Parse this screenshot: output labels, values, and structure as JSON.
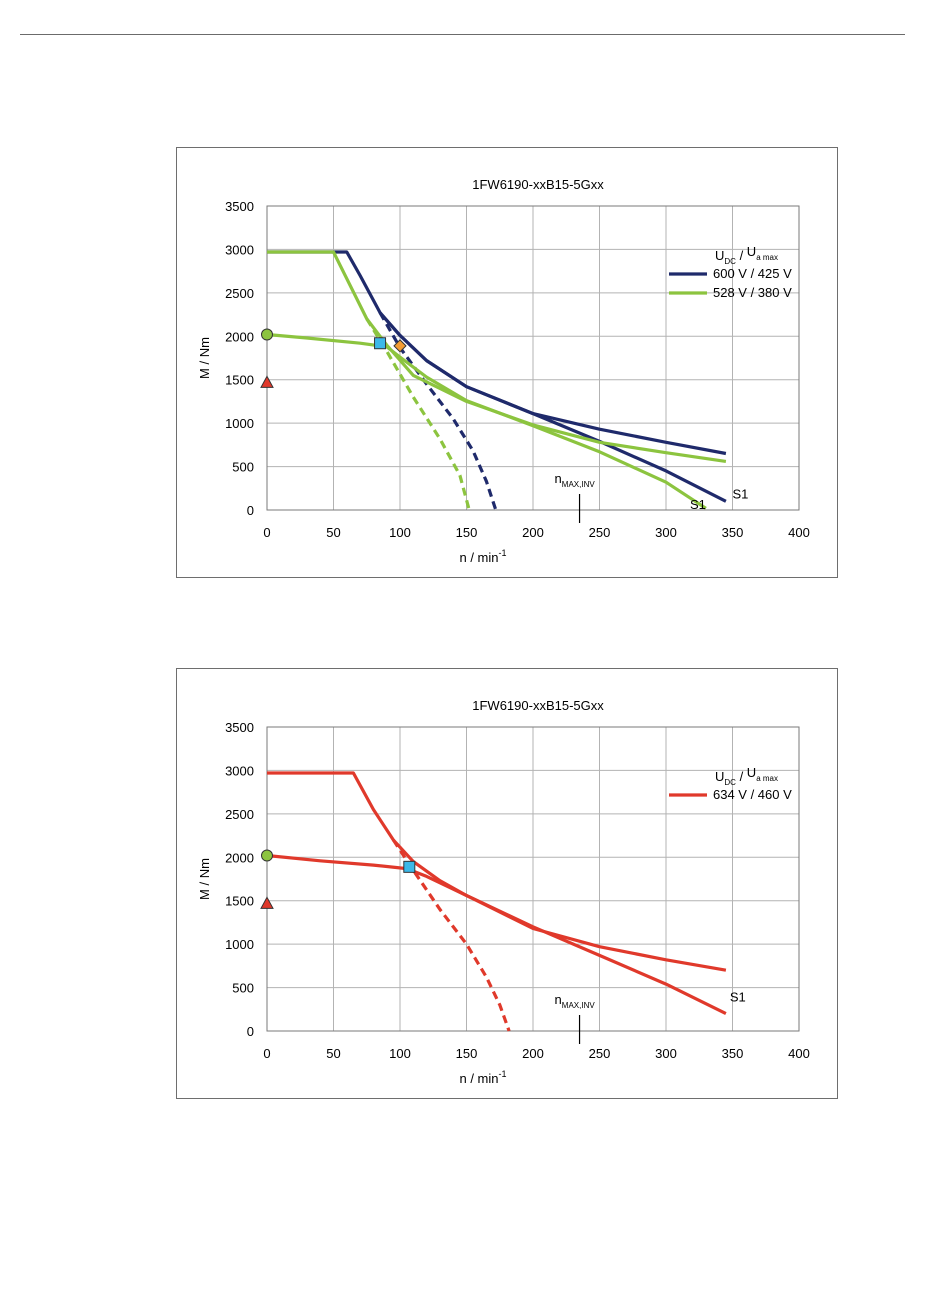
{
  "chart_data": [
    {
      "type": "line",
      "title": "1FW6190-xxB15-5Gxx",
      "xlabel_base": "n / min",
      "xlabel_sup": "-1",
      "ylabel": "M / Nm",
      "xlim": [
        0,
        400
      ],
      "ylim": [
        0,
        3500
      ],
      "xticks": [
        0,
        50,
        100,
        150,
        200,
        250,
        300,
        350,
        400
      ],
      "yticks": [
        0,
        500,
        1000,
        1500,
        2000,
        2500,
        3000,
        3500
      ],
      "grid": true,
      "legend_position": "top-right",
      "legend_header": {
        "u1": "U",
        "s1": "DC",
        "sep": "/",
        "u2": "U",
        "s2": "a max"
      },
      "nmax_label": {
        "base": "n",
        "sub": "MAX,INV",
        "x": 235
      },
      "annotations": [
        {
          "text": "S1",
          "x": 350,
          "y": 130
        },
        {
          "text": "S1",
          "x": 318,
          "y": 10
        }
      ],
      "series": [
        {
          "name": "600 V / 425 V",
          "color": "#1f2a6b",
          "lines": [
            {
              "style": "solid",
              "points": [
                [
                  0,
                  2970
                ],
                [
                  60,
                  2970
                ],
                [
                  70,
                  2700
                ],
                [
                  85,
                  2270
                ],
                [
                  100,
                  2010
                ],
                [
                  120,
                  1720
                ],
                [
                  150,
                  1420
                ],
                [
                  200,
                  1110
                ],
                [
                  250,
                  930
                ],
                [
                  300,
                  780
                ],
                [
                  345,
                  650
                ]
              ]
            },
            {
              "style": "solid",
              "points": [
                [
                  85,
                  2270
                ],
                [
                  100,
                  2010
                ],
                [
                  120,
                  1720
                ],
                [
                  150,
                  1420
                ],
                [
                  200,
                  1110
                ],
                [
                  250,
                  790
                ],
                [
                  300,
                  450
                ],
                [
                  345,
                  100
                ]
              ]
            },
            {
              "style": "dashed",
              "points": [
                [
                  85,
                  2270
                ],
                [
                  100,
                  1870
                ],
                [
                  120,
                  1450
                ],
                [
                  140,
                  1050
                ],
                [
                  155,
                  680
                ],
                [
                  165,
                  330
                ],
                [
                  172,
                  0
                ]
              ]
            }
          ]
        },
        {
          "name": "528 V / 380 V",
          "color": "#8cc43f",
          "lines": [
            {
              "style": "solid",
              "points": [
                [
                  0,
                  2970
                ],
                [
                  50,
                  2970
                ],
                [
                  75,
                  2200
                ],
                [
                  90,
                  1900
                ],
                [
                  110,
                  1550
                ],
                [
                  150,
                  1250
                ],
                [
                  200,
                  980
                ],
                [
                  250,
                  780
                ],
                [
                  300,
                  660
                ],
                [
                  345,
                  560
                ]
              ]
            },
            {
              "style": "solid",
              "points": [
                [
                  0,
                  2020
                ],
                [
                  30,
                  1980
                ],
                [
                  70,
                  1920
                ],
                [
                  90,
                  1880
                ],
                [
                  100,
                  1760
                ],
                [
                  120,
                  1530
                ],
                [
                  150,
                  1260
                ],
                [
                  200,
                  970
                ],
                [
                  250,
                  670
                ],
                [
                  300,
                  320
                ],
                [
                  330,
                  20
                ]
              ]
            },
            {
              "style": "dashed",
              "points": [
                [
                  75,
                  2200
                ],
                [
                  90,
                  1830
                ],
                [
                  110,
                  1300
                ],
                [
                  130,
                  820
                ],
                [
                  145,
                  400
                ],
                [
                  152,
                  0
                ]
              ]
            }
          ]
        }
      ],
      "markers": [
        {
          "shape": "circle",
          "color": "#8cc43f",
          "x": 0,
          "y": 2020
        },
        {
          "shape": "triangle",
          "color": "#e0392b",
          "x": 0,
          "y": 1470
        },
        {
          "shape": "square",
          "color": "#3cb8e8",
          "x": 85,
          "y": 1920
        },
        {
          "shape": "diamond",
          "color": "#f39c33",
          "x": 100,
          "y": 1890
        }
      ]
    },
    {
      "type": "line",
      "title": "1FW6190-xxB15-5Gxx",
      "xlabel_base": "n / min",
      "xlabel_sup": "-1",
      "ylabel": "M / Nm",
      "xlim": [
        0,
        400
      ],
      "ylim": [
        0,
        3500
      ],
      "xticks": [
        0,
        50,
        100,
        150,
        200,
        250,
        300,
        350,
        400
      ],
      "yticks": [
        0,
        500,
        1000,
        1500,
        2000,
        2500,
        3000,
        3500
      ],
      "grid": true,
      "legend_position": "top-right",
      "legend_header": {
        "u1": "U",
        "s1": "DC",
        "sep": "/",
        "u2": "U",
        "s2": "a max"
      },
      "nmax_label": {
        "base": "n",
        "sub": "MAX,INV",
        "x": 235
      },
      "annotations": [
        {
          "text": "S1",
          "x": 348,
          "y": 340
        }
      ],
      "series": [
        {
          "name": "634 V / 460 V",
          "color": "#e0392b",
          "lines": [
            {
              "style": "solid",
              "points": [
                [
                  0,
                  2970
                ],
                [
                  65,
                  2970
                ],
                [
                  80,
                  2550
                ],
                [
                  95,
                  2200
                ],
                [
                  110,
                  1950
                ],
                [
                  130,
                  1730
                ],
                [
                  150,
                  1560
                ],
                [
                  200,
                  1180
                ],
                [
                  250,
                  970
                ],
                [
                  300,
                  820
                ],
                [
                  345,
                  700
                ]
              ]
            },
            {
              "style": "solid",
              "points": [
                [
                  0,
                  2020
                ],
                [
                  40,
                  1960
                ],
                [
                  80,
                  1910
                ],
                [
                  105,
                  1870
                ],
                [
                  120,
                  1780
                ],
                [
                  150,
                  1560
                ],
                [
                  200,
                  1200
                ],
                [
                  250,
                  870
                ],
                [
                  300,
                  540
                ],
                [
                  345,
                  200
                ]
              ]
            },
            {
              "style": "dashed",
              "points": [
                [
                  95,
                  2200
                ],
                [
                  110,
                  1850
                ],
                [
                  130,
                  1400
                ],
                [
                  150,
                  1000
                ],
                [
                  165,
                  620
                ],
                [
                  175,
                  300
                ],
                [
                  182,
                  0
                ]
              ]
            }
          ]
        }
      ],
      "markers": [
        {
          "shape": "circle",
          "color": "#8cc43f",
          "x": 0,
          "y": 2020
        },
        {
          "shape": "triangle",
          "color": "#e0392b",
          "x": 0,
          "y": 1470
        },
        {
          "shape": "square",
          "color": "#3cb8e8",
          "x": 107,
          "y": 1890
        }
      ]
    }
  ]
}
